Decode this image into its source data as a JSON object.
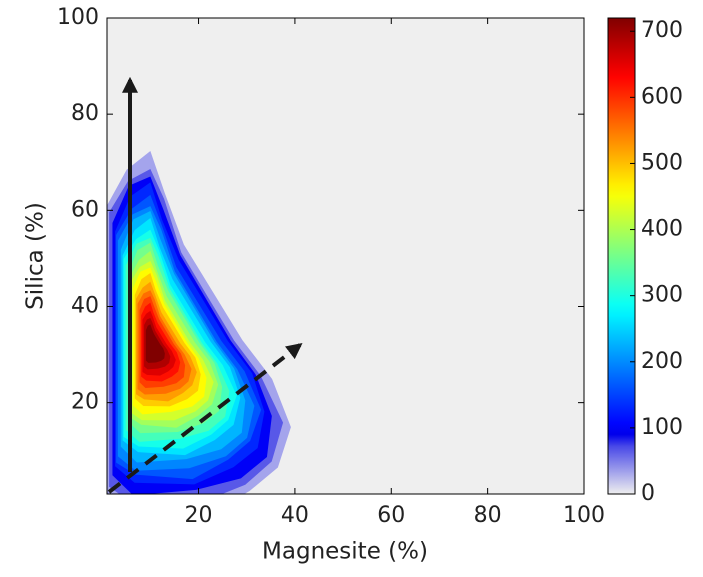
{
  "chart_data": {
    "type": "density_contour",
    "xlabel": "Magnesite (%)",
    "ylabel": "Silica (%)",
    "xlim": [
      1,
      100
    ],
    "ylim": [
      1,
      100
    ],
    "xticks": [
      20,
      40,
      60,
      80,
      100
    ],
    "yticks": [
      20,
      40,
      60,
      80,
      100
    ],
    "colormap": "jet",
    "clim": [
      0,
      720
    ],
    "cticks": [
      0,
      100,
      200,
      300,
      400,
      500,
      600,
      700
    ]
  }
}
